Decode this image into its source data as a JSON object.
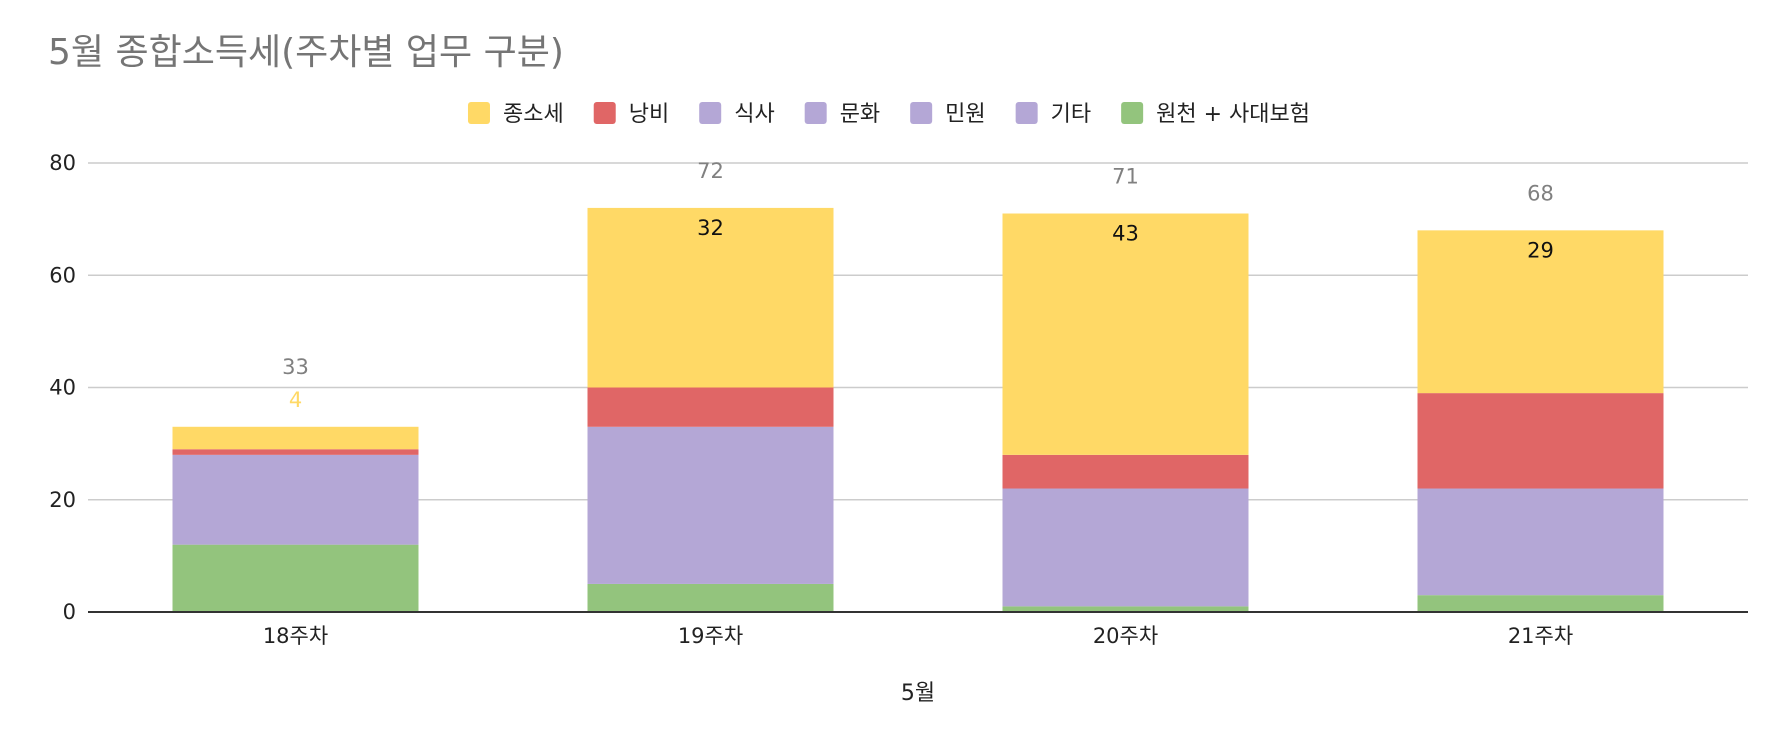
{
  "chart_data": {
    "type": "bar",
    "stacked": true,
    "title": "5월 종합소득세(주차별 업무 구분)",
    "xlabel": "5월",
    "ylabel": "",
    "ylim": [
      0,
      80
    ],
    "yticks": [
      0,
      20,
      40,
      60,
      80
    ],
    "grid": true,
    "legend_position": "top",
    "categories": [
      "18주차",
      "19주차",
      "20주차",
      "21주차"
    ],
    "series": [
      {
        "name": "원천 + 사대보험",
        "color": "#93c47d",
        "values": [
          12,
          5,
          1,
          3
        ]
      },
      {
        "name": "기타",
        "color": "#b4a7d6",
        "values": [
          16,
          28,
          21,
          19
        ]
      },
      {
        "name": "민원",
        "color": "#b4a7d6",
        "values": [
          0,
          0,
          0,
          0
        ]
      },
      {
        "name": "문화",
        "color": "#b4a7d6",
        "values": [
          0,
          0,
          0,
          0
        ]
      },
      {
        "name": "식사",
        "color": "#b4a7d6",
        "values": [
          0,
          0,
          0,
          0
        ]
      },
      {
        "name": "낭비",
        "color": "#e06666",
        "values": [
          1,
          7,
          6,
          17
        ]
      },
      {
        "name": "종소세",
        "color": "#ffd966",
        "values": [
          4,
          32,
          43,
          29
        ]
      }
    ],
    "legend_order": [
      "종소세",
      "낭비",
      "식사",
      "문화",
      "민원",
      "기타",
      "원천 + 사대보험"
    ],
    "data_labels": {
      "series": "종소세",
      "values": [
        "4",
        "32",
        "43",
        "29"
      ]
    },
    "totals": [
      "33",
      "72",
      "71",
      "68"
    ]
  }
}
